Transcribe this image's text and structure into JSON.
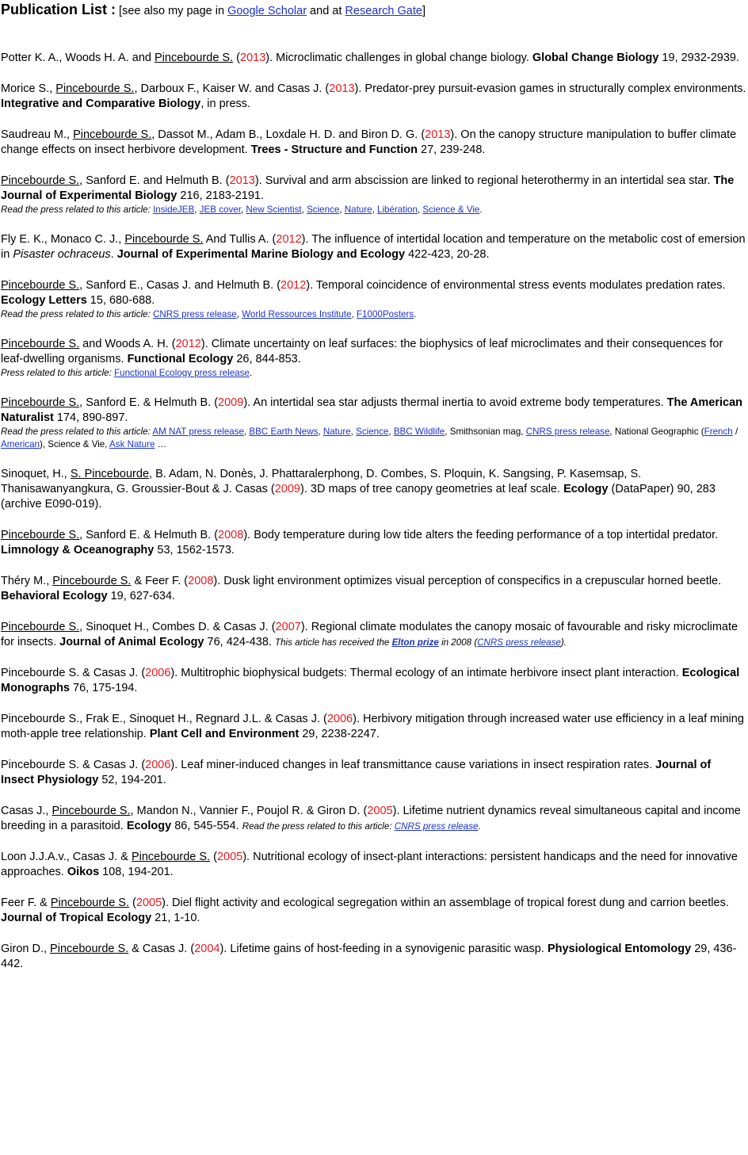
{
  "header": {
    "title": "Publication List :",
    "pre": " [see also my page in ",
    "link1": "Google Scholar",
    "mid": " and at ",
    "link2": "Research Gate",
    "post": "]"
  },
  "colors": {
    "year": "#e8181d",
    "link": "#1a33cc"
  },
  "pubs": [
    {
      "a1": "Potter K. A., Woods H. A. and ",
      "auth": "Pincebourde S.",
      "a2": " (",
      "year": "2013",
      "t": "). Microclimatic challenges in global change biology. ",
      "journal": "Global Change Biology",
      "ref": " 19, 2932-2939."
    },
    {
      "a1": "Morice S., ",
      "auth": "Pincebourde S.",
      "a2": ", Darboux F., Kaiser W. and Casas J. (",
      "year": "2013",
      "t": "). Predator-prey pursuit-evasion games in structurally complex environments. ",
      "journal": "Integrative and Comparative Biology",
      "ref": ", in press."
    },
    {
      "a1": "Saudreau M., ",
      "auth": "Pincebourde S.",
      "a2": ", Dassot M., Adam B., Loxdale H. D. and Biron D. G. (",
      "year": "2013",
      "t": "). On the canopy structure manipulation to buffer climate change effects on insect herbivore development. ",
      "journal": "Trees - Structure and Function",
      "ref": " 27, 239-248."
    },
    {
      "a1": "",
      "auth": "Pincebourde S.",
      "a2": ", Sanford E. and Helmuth B. (",
      "year": "2013",
      "t": "). Survival and arm abscission are linked to regional heterothermy in an intertidal sea star. ",
      "journal": "The Journal of Experimental Biology",
      "ref": " 216, 2183-2191.",
      "press_lead": "Read the press related to this article:",
      "press": [
        "InsideJEB",
        "JEB cover",
        "New Scientist",
        "Science",
        "Nature",
        "Libération",
        "Science & Vie"
      ]
    },
    {
      "a1": "Fly E. K., Monaco C. J., ",
      "auth": "Pincebourde S.",
      "a2": " And Tullis A. (",
      "year": "2012",
      "t": "). The influence of intertidal location and temperature on the metabolic cost of emersion in ",
      "species": "Pisaster ochraceus",
      "t2": ". ",
      "journal": "Journal of Experimental Marine Biology and Ecology",
      "ref": " 422-423, 20-28."
    },
    {
      "a1": "",
      "auth": "Pincebourde S.",
      "a2": ", Sanford E., Casas J. and Helmuth B. (",
      "year": "2012",
      "t": "). Temporal coincidence of environmental stress events modulates predation rates. ",
      "journal": "Ecology Letters",
      "ref": " 15, 680-688.",
      "press_lead": "Read the press related to this article:",
      "press": [
        "CNRS press release",
        "World Ressources Institute",
        "F1000Posters"
      ]
    },
    {
      "a1": "",
      "auth": "Pincebourde S.",
      "a2": " and Woods A. H. (",
      "year": "2012",
      "t": "). Climate uncertainty on leaf surfaces: the biophysics of leaf microclimates and their consequences for leaf-dwelling organisms. ",
      "journal": "Functional Ecology",
      "ref": " 26, 844-853.",
      "press_lead": "Press related to this article:",
      "press": [
        "Functional Ecology press release"
      ]
    },
    {
      "a1": "",
      "auth": "Pincebourde S.",
      "a2": ", Sanford E. & Helmuth B. (",
      "year": "2009",
      "t": "). An intertidal sea star adjusts thermal inertia to avoid extreme body temperatures. ",
      "journal": "The American Naturalist",
      "ref": " 174, 890-897.",
      "press9": {
        "lead": "Read the press related to this article:",
        "l1": "AM NAT press release",
        "l2": "BBC Earth News",
        "l3": "Nature",
        "l4": "Science",
        "l5": "BBC Wildlife",
        "p1": ", Smithsonian mag, ",
        "l6": "CNRS press release",
        "p2": ", National Geographic (",
        "l7": "French",
        "p3": " / ",
        "l8": "American",
        "p4": "), Science & Vie, ",
        "l9": "Ask Nature",
        "p5": " …"
      }
    },
    {
      "a1": "Sinoquet, H., ",
      "auth": "S. Pincebourde",
      "a2": ", B. Adam, N. Donès, J. Phattaralerphong, D. Combes, S. Ploquin, K. Sangsing, P. Kasemsap, S. Thanisawanyangkura, G. Groussier-Bout & J. Casas (",
      "year": "2009",
      "t": "). 3D maps of tree canopy geometries at leaf scale. ",
      "journal": "Ecology",
      "ref": " (DataPaper) 90, 283 (archive E090-019)."
    },
    {
      "a1": "",
      "auth": "Pincebourde S.",
      "a2": ", Sanford E. & Helmuth B. (",
      "year": "2008",
      "t": "). Body temperature during low tide alters the feeding performance of a top intertidal predator. ",
      "journal": "Limnology & Oceanography",
      "ref": " 53, 1562-1573."
    },
    {
      "a1": "Théry M., ",
      "auth": "Pincebourde S.",
      "a2": " & Feer F. (",
      "year": "2008",
      "t": "). Dusk light environment optimizes visual perception of conspecifics in a crepuscular horned beetle. ",
      "journal": "Behavioral Ecology",
      "ref": " 19, 627-634."
    },
    {
      "a1": "",
      "auth": "Pincebourde S.",
      "a2": ", Sinoquet H., Combes D. & Casas J. (",
      "year": "2007",
      "t": "). Regional climate modulates the canopy mosaic of favourable and risky microclimate for insects. ",
      "journal": "Journal of Animal Ecology",
      "ref": " 76, 424-438. ",
      "inote": {
        "pre": "This article has received the ",
        "prize": "Elton prize",
        "mid": " in 2008 (",
        "link": "CNRS press release",
        "post": ")."
      }
    },
    {
      "a1": "Pincebourde S. & Casas J. (",
      "year": "2006",
      "t": "). Multitrophic biophysical budgets: Thermal ecology of an intimate herbivore insect plant interaction. ",
      "journal": "Ecological Monographs",
      "ref": " 76, 175-194."
    },
    {
      "a1": "Pincebourde S., Frak E., Sinoquet H., Regnard J.L. & Casas J. (",
      "year": "2006",
      "t": "). Herbivory mitigation through increased water use efficiency in a leaf mining moth-apple tree relationship. ",
      "journal": "Plant Cell and Environment",
      "ref": " 29, 2238-2247."
    },
    {
      "a1": "Pincebourde S. & Casas J. (",
      "year": "2006",
      "t": "). Leaf miner-induced changes in leaf transmittance cause variations in insect respiration rates. ",
      "journal": "Journal of Insect Physiology",
      "ref": " 52, 194-201."
    },
    {
      "a1": "Casas J., ",
      "auth": "Pincebourde S.",
      "a2": ", Mandon N., Vannier F., Poujol R. & Giron D. (",
      "year": "2005",
      "t": "). Lifetime nutrient dynamics reveal simultaneous capital and income breeding in a parasitoid. ",
      "journal": "Ecology",
      "ref": " 86, 545-554. ",
      "inote2": {
        "pre": "Read the press related to this article: ",
        "link": "CNRS press release",
        "post": "."
      }
    },
    {
      "a1": "Loon J.J.A.v., Casas J. & ",
      "auth": "Pincebourde S.",
      "a2": " (",
      "year": "2005",
      "t": "). Nutritional ecology of insect-plant interactions: persistent handicaps and the need for innovative approaches. ",
      "journal": "Oikos",
      "ref": " 108, 194-201."
    },
    {
      "a1": "Feer F. & ",
      "auth": "Pincebourde S.",
      "a2": " (",
      "year": "2005",
      "t": "). Diel flight activity and ecological segregation within an assemblage of tropical forest dung and carrion beetles. ",
      "journal": "Journal of Tropical Ecology",
      "ref": " 21, 1-10."
    },
    {
      "a1": "Giron D., ",
      "auth": "Pincebourde S.",
      "a2": " & Casas J. (",
      "year": "2004",
      "t": "). Lifetime gains of host-feeding in a synovigenic parasitic wasp. ",
      "journal": "Physiological Entomology",
      "ref": " 29, 436-442."
    }
  ]
}
